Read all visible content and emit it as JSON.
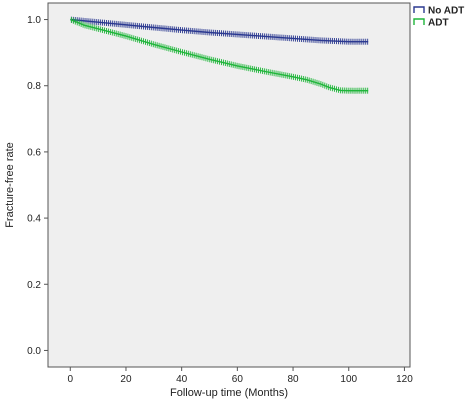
{
  "chart_data": {
    "type": "line",
    "title": "",
    "xlabel": "Follow-up time (Months)",
    "ylabel": "Fracture-free rate",
    "xlim": [
      -8,
      122
    ],
    "ylim": [
      -0.05,
      1.05
    ],
    "x_ticks": [
      0,
      20,
      40,
      60,
      80,
      100,
      120
    ],
    "y_ticks": [
      0.0,
      0.2,
      0.4,
      0.6,
      0.8,
      1.0
    ],
    "x_tick_labels": [
      "0",
      "20",
      "40",
      "60",
      "80",
      "100",
      "120"
    ],
    "y_tick_labels": [
      "0.0",
      "0.2",
      "0.4",
      "0.6",
      "0.8",
      "1.0"
    ],
    "grid": false,
    "legend_position": "top-right",
    "plot_background": "#efefef",
    "series": [
      {
        "name": "No ADT",
        "color": "#2b3990",
        "x": [
          0,
          10,
          20,
          30,
          40,
          50,
          60,
          70,
          80,
          90,
          100,
          107
        ],
        "y": [
          1.0,
          0.992,
          0.984,
          0.976,
          0.968,
          0.961,
          0.955,
          0.949,
          0.943,
          0.937,
          0.933,
          0.933
        ]
      },
      {
        "name": "ADT",
        "color": "#1fb53a",
        "x": [
          0,
          5,
          10,
          20,
          30,
          40,
          50,
          60,
          70,
          80,
          85,
          90,
          93,
          97,
          100,
          107
        ],
        "y": [
          1.0,
          0.983,
          0.972,
          0.95,
          0.925,
          0.902,
          0.88,
          0.86,
          0.843,
          0.827,
          0.818,
          0.805,
          0.795,
          0.786,
          0.785,
          0.785
        ]
      }
    ]
  }
}
